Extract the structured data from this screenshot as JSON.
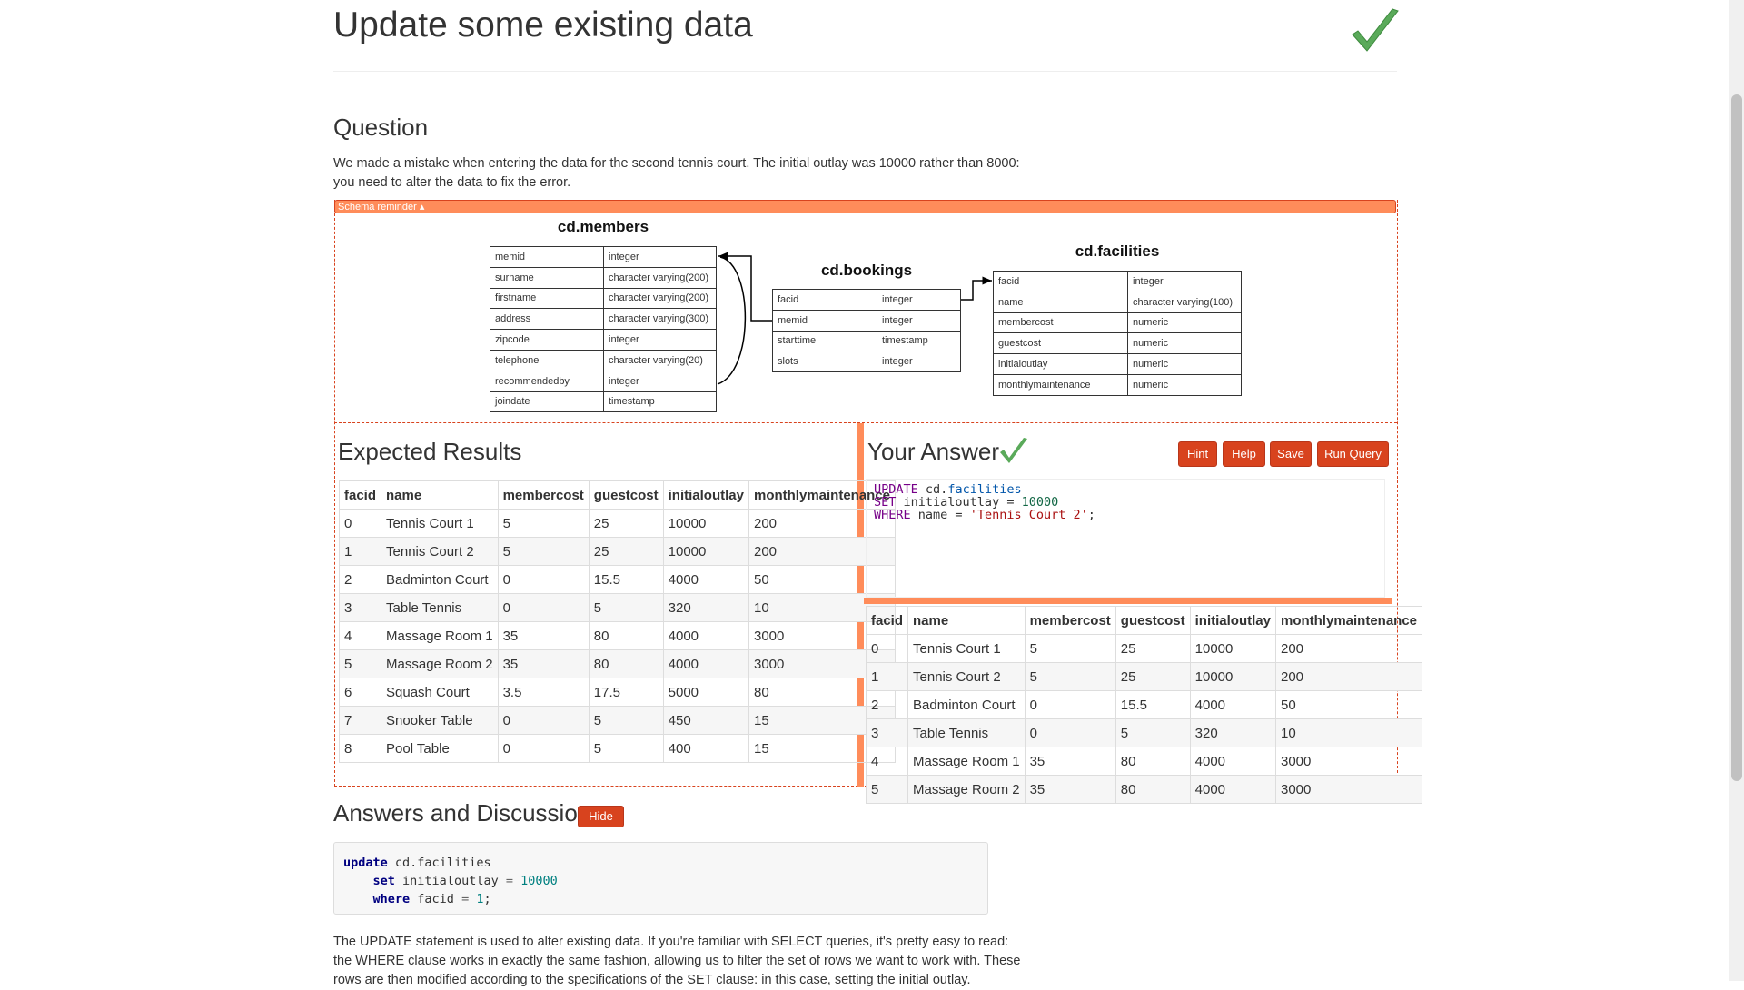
{
  "header": {
    "title": "Update some existing data"
  },
  "question": {
    "heading": "Question",
    "text": "We made a mistake when entering the data for the second tennis court. The initial outlay was 10000 rather than 8000: you need to alter the data to fix the error."
  },
  "schema": {
    "toggle": "Schema reminder ▴",
    "tables": [
      {
        "name": "cd.members",
        "columns": [
          [
            "memid",
            "integer"
          ],
          [
            "surname",
            "character varying(200)"
          ],
          [
            "firstname",
            "character varying(200)"
          ],
          [
            "address",
            "character varying(300)"
          ],
          [
            "zipcode",
            "integer"
          ],
          [
            "telephone",
            "character varying(20)"
          ],
          [
            "recommendedby",
            "integer"
          ],
          [
            "joindate",
            "timestamp"
          ]
        ]
      },
      {
        "name": "cd.bookings",
        "columns": [
          [
            "facid",
            "integer"
          ],
          [
            "memid",
            "integer"
          ],
          [
            "starttime",
            "timestamp"
          ],
          [
            "slots",
            "integer"
          ]
        ]
      },
      {
        "name": "cd.facilities",
        "columns": [
          [
            "facid",
            "integer"
          ],
          [
            "name",
            "character varying(100)"
          ],
          [
            "membercost",
            "numeric"
          ],
          [
            "guestcost",
            "numeric"
          ],
          [
            "initialoutlay",
            "numeric"
          ],
          [
            "monthlymaintenance",
            "numeric"
          ]
        ]
      }
    ]
  },
  "expected": {
    "heading": "Expected Results",
    "columns": [
      "facid",
      "name",
      "membercost",
      "guestcost",
      "initialoutlay",
      "monthlymaintenance"
    ],
    "rows": [
      [
        0,
        "Tennis Court 1",
        5,
        25,
        10000,
        200
      ],
      [
        1,
        "Tennis Court 2",
        5,
        25,
        10000,
        200
      ],
      [
        2,
        "Badminton Court",
        0,
        15.5,
        4000,
        50
      ],
      [
        3,
        "Table Tennis",
        0,
        5,
        320,
        10
      ],
      [
        4,
        "Massage Room 1",
        35,
        80,
        4000,
        3000
      ],
      [
        5,
        "Massage Room 2",
        35,
        80,
        4000,
        3000
      ],
      [
        6,
        "Squash Court",
        3.5,
        17.5,
        5000,
        80
      ],
      [
        7,
        "Snooker Table",
        0,
        5,
        450,
        15
      ],
      [
        8,
        "Pool Table",
        0,
        5,
        400,
        15
      ]
    ]
  },
  "answer": {
    "heading": "Your Answer",
    "buttons": [
      "Hint",
      "Help",
      "Save",
      "Run Query"
    ],
    "code": [
      [
        "UPDATE",
        "cd.",
        "facilities"
      ],
      [
        "SET",
        "initialoutlay =",
        "10000"
      ],
      [
        "WHERE",
        "name =",
        "'Tennis Court 2'",
        ";"
      ]
    ],
    "columns": [
      "facid",
      "name",
      "membercost",
      "guestcost",
      "initialoutlay",
      "monthlymaintenance"
    ],
    "rows": [
      [
        0,
        "Tennis Court 1",
        5,
        25,
        10000,
        200
      ],
      [
        1,
        "Tennis Court 2",
        5,
        25,
        10000,
        200
      ],
      [
        2,
        "Badminton Court",
        0,
        15.5,
        4000,
        50
      ],
      [
        3,
        "Table Tennis",
        0,
        5,
        320,
        10
      ],
      [
        4,
        "Massage Room 1",
        35,
        80,
        4000,
        3000
      ],
      [
        5,
        "Massage Room 2",
        35,
        80,
        4000,
        3000
      ]
    ]
  },
  "discussion": {
    "heading": "Answers and Discussion",
    "button": "Hide",
    "code": [
      [
        "update",
        "cd.facilities"
      ],
      [
        "set",
        "initialoutlay",
        "=",
        "10000"
      ],
      [
        "where",
        "facid",
        "=",
        "1",
        ";"
      ]
    ],
    "text": "The UPDATE statement is used to alter existing data. If you're familiar with SELECT queries, it's pretty easy to read: the WHERE clause works in exactly the same fashion, allowing us to filter the set of rows we want to work with. These rows are then modified according to the specifications of the SET clause: in this case, setting the initial outlay."
  }
}
